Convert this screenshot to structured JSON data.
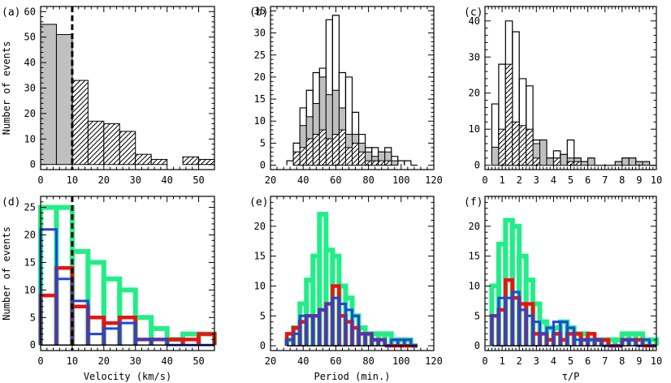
{
  "figure": {
    "colors": {
      "gray": "#c0c0c0",
      "green": "#22ee88",
      "red": "#ee1111",
      "blue": "#2244dd",
      "black": "#000000"
    }
  },
  "chart_data": [
    {
      "id": "a",
      "panel_label": "(a)",
      "type": "bar",
      "xlabel": "",
      "ylabel": "Number of events",
      "xlim": [
        0,
        55
      ],
      "ylim": [
        -2,
        62
      ],
      "xticks": [
        0,
        10,
        20,
        30,
        40,
        50
      ],
      "yticks": [
        0,
        10,
        20,
        30,
        40,
        50,
        60
      ],
      "xtick_labels": [
        "0",
        "10",
        "20",
        "30",
        "40",
        "50"
      ],
      "ytick_labels": [
        "0",
        "10",
        "20",
        "30",
        "40",
        "50",
        "60"
      ],
      "vline_x": 10,
      "bin_width": 5,
      "series": [
        {
          "style": "gray",
          "bins": [
            0,
            5
          ],
          "values": [
            55,
            51
          ]
        },
        {
          "style": "hatch",
          "bins": [
            10,
            15,
            20,
            25,
            30,
            35,
            40,
            45,
            50
          ],
          "values": [
            33,
            17,
            16,
            13,
            4,
            2,
            0,
            3,
            2
          ]
        }
      ]
    },
    {
      "id": "b",
      "panel_label": "(b)",
      "type": "bar",
      "xlabel": "",
      "ylabel": "",
      "xlim": [
        20,
        120
      ],
      "ylim": [
        -1,
        36
      ],
      "xticks": [
        20,
        40,
        60,
        80,
        100,
        120
      ],
      "yticks": [
        0,
        5,
        10,
        15,
        20,
        25,
        30,
        35
      ],
      "xtick_labels": [
        "20",
        "40",
        "60",
        "80",
        "100",
        "120"
      ],
      "ytick_labels": [
        "0",
        "5",
        "10",
        "15",
        "20",
        "25",
        "30",
        "35"
      ],
      "bin_width": 4,
      "series": [
        {
          "style": "outline",
          "bins": [
            30,
            34,
            38,
            42,
            46,
            50,
            54,
            58,
            62,
            66,
            70,
            74,
            78,
            82,
            86,
            90,
            94,
            98,
            102,
            106
          ],
          "values": [
            1,
            5,
            13,
            17,
            21,
            22,
            33,
            34,
            21,
            20,
            12,
            7,
            4,
            4,
            3,
            4,
            2,
            1,
            1,
            0
          ]
        },
        {
          "style": "gray",
          "bins": [
            30,
            34,
            38,
            42,
            46,
            50,
            54,
            58,
            62,
            66,
            70,
            74,
            78,
            82,
            86,
            90,
            94,
            98,
            102,
            106
          ],
          "values": [
            0,
            3,
            9,
            11,
            14,
            20,
            16,
            17,
            13,
            7,
            7,
            5,
            3,
            2,
            3,
            3,
            1,
            0,
            0,
            0
          ]
        },
        {
          "style": "hatch",
          "bins": [
            30,
            34,
            38,
            42,
            46,
            50,
            54,
            58,
            62,
            66,
            70,
            74,
            78,
            82,
            86,
            90,
            94,
            98,
            102,
            106
          ],
          "values": [
            0,
            3,
            4,
            6,
            7,
            8,
            6,
            7,
            8,
            4,
            5,
            3,
            1,
            1,
            1,
            1,
            0,
            0,
            0,
            0
          ]
        }
      ]
    },
    {
      "id": "c",
      "panel_label": "(c)",
      "type": "bar",
      "xlabel": "",
      "ylabel": "",
      "xlim": [
        0,
        10
      ],
      "ylim": [
        -1.2,
        44
      ],
      "xticks": [
        0,
        1,
        2,
        3,
        4,
        5,
        6,
        7,
        8,
        9,
        10
      ],
      "yticks": [
        0,
        10,
        20,
        30,
        40
      ],
      "xtick_labels": [
        "0",
        "1",
        "2",
        "3",
        "4",
        "5",
        "6",
        "7",
        "8",
        "9",
        "10"
      ],
      "ytick_labels": [
        "0",
        "10",
        "20",
        "30",
        "40"
      ],
      "bin_width": 0.4,
      "series": [
        {
          "style": "outline",
          "bins": [
            0.4,
            0.8,
            1.2,
            1.6,
            2.0,
            2.4,
            2.8,
            3.2,
            3.6,
            4.0,
            4.4,
            4.8,
            5.2,
            5.6,
            6.0,
            6.4,
            6.8,
            7.2,
            7.6,
            8.0,
            8.4,
            8.8,
            9.2,
            9.6
          ],
          "values": [
            17,
            28,
            40,
            37,
            24,
            22,
            7,
            7,
            2,
            4,
            3,
            7,
            2,
            1,
            2,
            0,
            0,
            0,
            1,
            2,
            2,
            1,
            1,
            0
          ]
        },
        {
          "style": "gray",
          "bins": [
            0.4,
            0.8,
            1.2,
            1.6,
            2.0,
            2.4,
            2.8,
            3.2,
            3.6,
            4.0,
            4.4,
            4.8,
            5.2,
            5.6,
            6.0,
            6.4,
            6.8,
            7.2,
            7.6,
            8.0,
            8.4,
            8.8,
            9.2,
            9.6
          ],
          "values": [
            5,
            9,
            10,
            11,
            8,
            7,
            6,
            7,
            2,
            2,
            3,
            2,
            2,
            1,
            2,
            0,
            0,
            0,
            1,
            2,
            2,
            1,
            1,
            0
          ]
        },
        {
          "style": "hatch",
          "bins": [
            0.4,
            0.8,
            1.2,
            1.6,
            2.0,
            2.4,
            2.8,
            3.2,
            3.6,
            4.0,
            4.4,
            4.8,
            5.2,
            5.6,
            6.0,
            6.4,
            6.8,
            7.2,
            7.6,
            8.0,
            8.4,
            8.8,
            9.2,
            9.6
          ],
          "values": [
            0,
            10,
            28,
            12,
            11,
            10,
            2,
            0,
            0,
            2,
            0,
            1,
            1,
            0,
            0,
            0,
            0,
            0,
            0,
            0,
            0,
            0,
            0,
            0
          ]
        }
      ]
    },
    {
      "id": "d",
      "panel_label": "(d)",
      "type": "bar",
      "xlabel": "Velocity (km/s)",
      "ylabel": "Number of events",
      "xlim": [
        0,
        55
      ],
      "ylim": [
        -1,
        27
      ],
      "xticks": [
        0,
        10,
        20,
        30,
        40,
        50
      ],
      "yticks": [
        0,
        5,
        10,
        15,
        20,
        25
      ],
      "xtick_labels": [
        "0",
        "10",
        "20",
        "30",
        "40",
        "50"
      ],
      "ytick_labels": [
        "0",
        "5",
        "10",
        "15",
        "20",
        "25"
      ],
      "vline_x": 10,
      "bin_width": 5,
      "series": [
        {
          "style": "green",
          "bins": [
            0,
            5,
            10,
            15,
            20,
            25,
            30,
            35,
            40,
            45,
            50
          ],
          "values": [
            25,
            25,
            17,
            15,
            12,
            10,
            5,
            3,
            1,
            2,
            2
          ]
        },
        {
          "style": "red",
          "bins": [
            0,
            5,
            10,
            15,
            20,
            25,
            30,
            35,
            40,
            45,
            50
          ],
          "values": [
            9,
            14,
            7,
            5,
            4,
            5,
            1,
            1,
            1,
            1,
            2
          ]
        },
        {
          "style": "blue",
          "bins": [
            0,
            5,
            10,
            15,
            20,
            25,
            30,
            35,
            40,
            45,
            50
          ],
          "values": [
            21,
            12,
            8,
            2,
            3,
            4,
            1,
            1,
            0,
            0,
            0
          ]
        },
        {
          "style": "black",
          "bins": [
            0,
            5,
            10,
            15,
            20,
            25,
            30,
            35,
            40,
            45,
            50
          ],
          "values": [
            0,
            0,
            0,
            0,
            0,
            0,
            0,
            0,
            0,
            0,
            0
          ]
        }
      ]
    },
    {
      "id": "e",
      "panel_label": "(e)",
      "type": "bar",
      "xlabel": "Period (min.)",
      "ylabel": "",
      "xlim": [
        20,
        120
      ],
      "ylim": [
        -0.8,
        25
      ],
      "xticks": [
        20,
        40,
        60,
        80,
        100,
        120
      ],
      "yticks": [
        0,
        5,
        10,
        15,
        20
      ],
      "xtick_labels": [
        "20",
        "40",
        "60",
        "80",
        "100",
        "120"
      ],
      "ytick_labels": [
        "0",
        "5",
        "10",
        "15",
        "20"
      ],
      "bin_width": 4,
      "series": [
        {
          "style": "green",
          "bins": [
            30,
            34,
            38,
            42,
            46,
            50,
            54,
            58,
            62,
            66,
            70,
            74,
            78,
            82,
            86,
            90,
            94,
            98,
            102,
            106
          ],
          "values": [
            1,
            3,
            7,
            11,
            15,
            22,
            16,
            15,
            10,
            8,
            5,
            3,
            2,
            2,
            2,
            2,
            1,
            1,
            1,
            0
          ]
        },
        {
          "style": "red",
          "bins": [
            30,
            34,
            38,
            42,
            46,
            50,
            54,
            58,
            62,
            66,
            70,
            74,
            78,
            82,
            86,
            90,
            94,
            98,
            102,
            106
          ],
          "values": [
            2,
            3,
            4,
            5,
            5,
            6,
            7,
            10,
            5,
            4,
            3,
            2,
            2,
            1,
            1,
            0,
            0,
            0,
            0,
            0
          ]
        },
        {
          "style": "blue",
          "bins": [
            30,
            34,
            38,
            42,
            46,
            50,
            54,
            58,
            62,
            66,
            70,
            74,
            78,
            82,
            86,
            90,
            94,
            98,
            102,
            106
          ],
          "values": [
            1,
            2,
            5,
            5,
            5,
            6,
            7,
            8,
            7,
            6,
            5,
            2,
            2,
            1,
            1,
            0,
            1,
            1,
            1,
            0
          ]
        },
        {
          "style": "black",
          "bins": [
            30,
            34,
            38,
            42,
            46,
            50,
            54,
            58,
            62,
            66,
            70,
            74,
            78,
            82,
            86,
            90,
            94,
            98,
            102,
            106
          ],
          "values": [
            0,
            0,
            0,
            0,
            0,
            0,
            0,
            0,
            0,
            0,
            0,
            0,
            0,
            0,
            0,
            0,
            0,
            0,
            0,
            0
          ]
        }
      ]
    },
    {
      "id": "f",
      "panel_label": "(f)",
      "type": "bar",
      "xlabel": "τ/P",
      "ylabel": "",
      "xlim": [
        0,
        10
      ],
      "ylim": [
        -0.8,
        25
      ],
      "xticks": [
        0,
        1,
        2,
        3,
        4,
        5,
        6,
        7,
        8,
        9,
        10
      ],
      "yticks": [
        0,
        5,
        10,
        15,
        20
      ],
      "xtick_labels": [
        "0",
        "1",
        "2",
        "3",
        "4",
        "5",
        "6",
        "7",
        "8",
        "9",
        "10"
      ],
      "ytick_labels": [
        "0",
        "5",
        "10",
        "15",
        "20"
      ],
      "bin_width": 0.4,
      "series": [
        {
          "style": "green",
          "bins": [
            0.4,
            0.8,
            1.2,
            1.6,
            2.0,
            2.4,
            2.8,
            3.2,
            3.6,
            4.0,
            4.4,
            4.8,
            5.2,
            5.6,
            6.0,
            6.4,
            6.8,
            7.2,
            7.6,
            8.0,
            8.4,
            8.8,
            9.2,
            9.6
          ],
          "values": [
            10,
            17,
            21,
            20,
            15,
            11,
            7,
            4,
            3,
            3,
            4,
            3,
            2,
            2,
            1,
            1,
            1,
            1,
            1,
            2,
            2,
            2,
            1,
            1
          ]
        },
        {
          "style": "red",
          "bins": [
            0.4,
            0.8,
            1.2,
            1.6,
            2.0,
            2.4,
            2.8,
            3.2,
            3.6,
            4.0,
            4.4,
            4.8,
            5.2,
            5.6,
            6.0,
            6.4,
            6.8,
            7.2,
            7.6,
            8.0,
            8.4,
            8.8,
            9.2,
            9.6
          ],
          "values": [
            5,
            6,
            11,
            8,
            7,
            7,
            2,
            2,
            1,
            2,
            1,
            2,
            2,
            1,
            2,
            1,
            1,
            0,
            0,
            1,
            1,
            1,
            0,
            0
          ]
        },
        {
          "style": "blue",
          "bins": [
            0.4,
            0.8,
            1.2,
            1.6,
            2.0,
            2.4,
            2.8,
            3.2,
            3.6,
            4.0,
            4.4,
            4.8,
            5.2,
            5.6,
            6.0,
            6.4,
            6.8,
            7.2,
            7.6,
            8.0,
            8.4,
            8.8,
            9.2,
            9.6
          ],
          "values": [
            5,
            8,
            8,
            9,
            6,
            5,
            4,
            2,
            3,
            4,
            4,
            3,
            1,
            1,
            1,
            1,
            0,
            0,
            0,
            1,
            1,
            0,
            1,
            0
          ]
        },
        {
          "style": "black",
          "bins": [
            0.4,
            0.8,
            1.2,
            1.6,
            2.0,
            2.4,
            2.8,
            3.2,
            3.6,
            4.0,
            4.4,
            4.8,
            5.2,
            5.6,
            6.0,
            6.4,
            6.8,
            7.2,
            7.6,
            8.0,
            8.4,
            8.8,
            9.2,
            9.6
          ],
          "values": [
            0,
            0,
            0,
            0,
            0,
            0,
            0,
            0,
            0,
            0,
            0,
            0,
            0,
            0,
            0,
            0,
            0,
            0,
            0,
            0,
            0,
            0,
            0,
            0
          ]
        }
      ]
    }
  ]
}
